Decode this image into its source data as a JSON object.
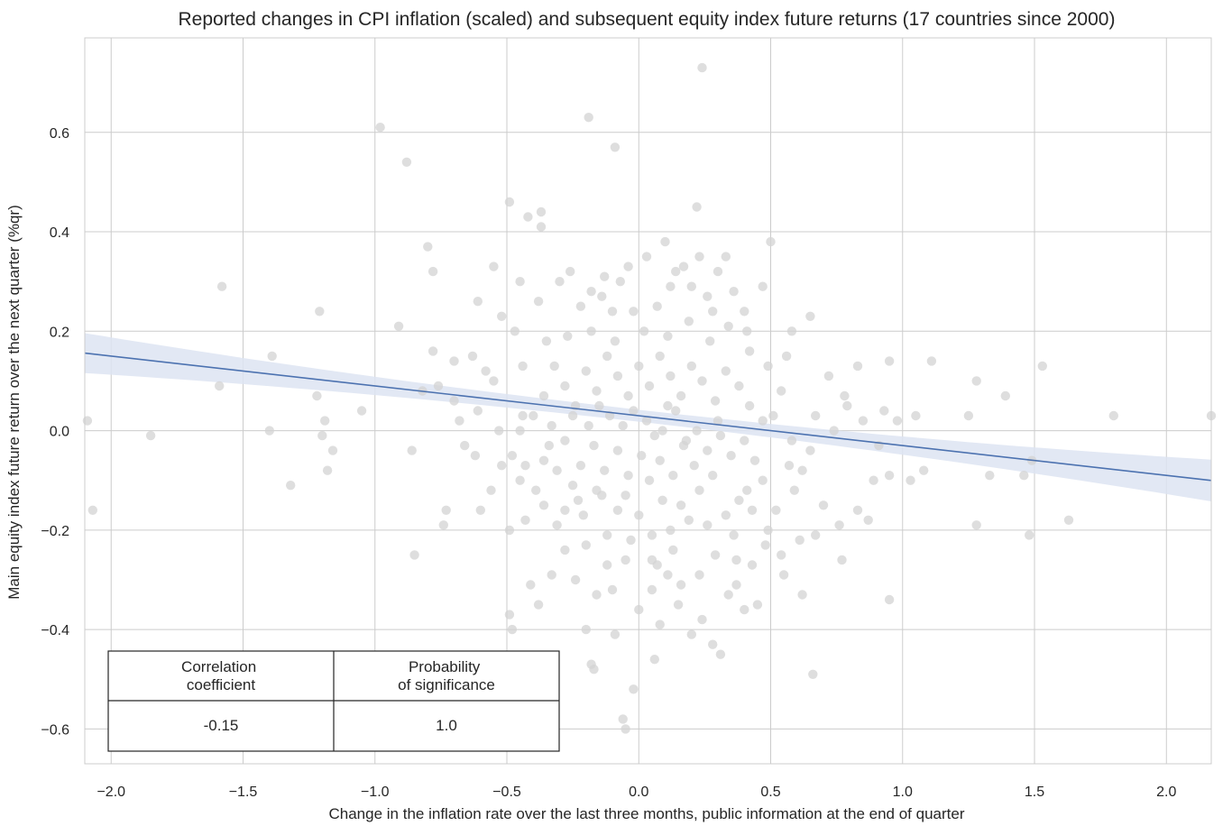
{
  "chart_data": {
    "type": "scatter",
    "title": "Reported changes in CPI inflation (scaled) and subsequent equity index future returns (17 countries since 2000)",
    "xlabel": "Change in the inflation rate over the last three months, public information at the end of quarter",
    "ylabel": "Main equity index future return over the next quarter (%qr)",
    "xlim": [
      -2.1,
      2.17
    ],
    "ylim": [
      -0.67,
      0.79
    ],
    "xticks": [
      -2.0,
      -1.5,
      -1.0,
      -0.5,
      0.0,
      0.5,
      1.0,
      1.5,
      2.0
    ],
    "xtick_labels": [
      "−2.0",
      "−1.5",
      "−1.0",
      "−0.5",
      "0.0",
      "0.5",
      "1.0",
      "1.5",
      "2.0"
    ],
    "yticks": [
      -0.6,
      -0.4,
      -0.2,
      0.0,
      0.2,
      0.4,
      0.6
    ],
    "ytick_labels": [
      "−0.6",
      "−0.4",
      "−0.2",
      "0.0",
      "0.2",
      "0.4",
      "0.6"
    ],
    "grid": true,
    "colors": {
      "points": "#d3d3d3",
      "line": "#4c72b0",
      "band": "#dde4f2",
      "grid": "#cccccc"
    },
    "regression": {
      "intercept": 0.03,
      "slope": -0.06,
      "ci_half_width_center": 0.012,
      "ci_half_width_edge": 0.042
    },
    "points": [
      [
        0.24,
        0.73
      ],
      [
        -0.98,
        0.61
      ],
      [
        -0.19,
        0.63
      ],
      [
        -0.09,
        0.57
      ],
      [
        -0.88,
        0.54
      ],
      [
        -0.49,
        0.46
      ],
      [
        -0.37,
        0.44
      ],
      [
        0.22,
        0.45
      ],
      [
        -0.42,
        0.43
      ],
      [
        -0.37,
        0.41
      ],
      [
        0.5,
        0.38
      ],
      [
        -0.8,
        0.37
      ],
      [
        -0.78,
        0.32
      ],
      [
        -1.58,
        0.29
      ],
      [
        -1.21,
        0.24
      ],
      [
        -0.91,
        0.21
      ],
      [
        -1.39,
        0.15
      ],
      [
        0.65,
        0.23
      ],
      [
        -1.59,
        0.09
      ],
      [
        -1.22,
        0.07
      ],
      [
        -0.78,
        0.16
      ],
      [
        0.95,
        0.14
      ],
      [
        1.11,
        0.14
      ],
      [
        1.53,
        0.13
      ],
      [
        1.28,
        0.1
      ],
      [
        1.39,
        0.07
      ],
      [
        -1.05,
        0.04
      ],
      [
        -1.19,
        0.02
      ],
      [
        1.25,
        0.03
      ],
      [
        1.8,
        0.03
      ],
      [
        2.17,
        0.03
      ],
      [
        -2.09,
        0.02
      ],
      [
        -1.4,
        0.0
      ],
      [
        -1.2,
        -0.01
      ],
      [
        -1.85,
        -0.01
      ],
      [
        -1.16,
        -0.04
      ],
      [
        -0.86,
        -0.04
      ],
      [
        1.49,
        -0.06
      ],
      [
        1.08,
        -0.08
      ],
      [
        1.03,
        -0.1
      ],
      [
        1.46,
        -0.09
      ],
      [
        1.33,
        -0.09
      ],
      [
        -1.18,
        -0.08
      ],
      [
        -1.32,
        -0.11
      ],
      [
        -2.07,
        -0.16
      ],
      [
        -0.73,
        -0.16
      ],
      [
        -0.74,
        -0.19
      ],
      [
        0.87,
        -0.18
      ],
      [
        1.63,
        -0.18
      ],
      [
        1.28,
        -0.19
      ],
      [
        1.48,
        -0.21
      ],
      [
        0.77,
        -0.26
      ],
      [
        -0.85,
        -0.25
      ],
      [
        0.95,
        -0.34
      ],
      [
        0.66,
        -0.49
      ],
      [
        -0.18,
        -0.47
      ],
      [
        -0.02,
        -0.52
      ],
      [
        0.06,
        -0.46
      ],
      [
        -0.06,
        -0.58
      ],
      [
        -0.05,
        -0.6
      ],
      [
        -0.48,
        -0.4
      ],
      [
        0.31,
        -0.45
      ],
      [
        0.28,
        -0.43
      ],
      [
        -0.09,
        -0.41
      ],
      [
        -0.2,
        -0.4
      ],
      [
        0.2,
        -0.41
      ],
      [
        -0.38,
        -0.35
      ],
      [
        0.37,
        -0.31
      ],
      [
        0.45,
        -0.35
      ],
      [
        -0.17,
        -0.48
      ],
      [
        -0.49,
        -0.37
      ],
      [
        0.15,
        -0.35
      ],
      [
        -0.3,
        0.3
      ],
      [
        -0.18,
        0.28
      ],
      [
        0.23,
        0.35
      ],
      [
        0.33,
        0.35
      ],
      [
        0.03,
        0.35
      ],
      [
        0.36,
        0.28
      ],
      [
        0.47,
        0.29
      ],
      [
        0.17,
        0.33
      ],
      [
        -0.1,
        0.24
      ],
      [
        0.28,
        0.24
      ],
      [
        0.41,
        0.2
      ],
      [
        0.58,
        0.2
      ],
      [
        -0.02,
        0.24
      ],
      [
        -0.61,
        0.26
      ],
      [
        -0.52,
        0.23
      ],
      [
        -0.55,
        0.33
      ],
      [
        -0.45,
        0.3
      ],
      [
        -0.63,
        0.15
      ],
      [
        -0.7,
        0.14
      ],
      [
        -0.58,
        0.12
      ],
      [
        -0.44,
        0.13
      ],
      [
        -0.7,
        0.06
      ],
      [
        -0.68,
        0.02
      ],
      [
        -0.61,
        0.04
      ],
      [
        -0.53,
        0.0
      ],
      [
        -0.44,
        0.03
      ],
      [
        -0.45,
        0.0
      ],
      [
        -0.62,
        -0.05
      ],
      [
        -0.52,
        -0.07
      ],
      [
        -0.56,
        -0.12
      ],
      [
        -0.45,
        -0.1
      ],
      [
        -0.6,
        -0.16
      ],
      [
        -0.49,
        -0.2
      ],
      [
        -0.43,
        -0.18
      ],
      [
        -0.28,
        -0.24
      ],
      [
        -0.2,
        -0.23
      ],
      [
        -0.36,
        -0.15
      ],
      [
        -0.12,
        -0.27
      ],
      [
        0.05,
        -0.26
      ],
      [
        0.13,
        -0.24
      ],
      [
        0.23,
        -0.29
      ],
      [
        0.29,
        -0.25
      ],
      [
        0.37,
        -0.26
      ],
      [
        0.43,
        -0.27
      ],
      [
        0.54,
        -0.25
      ],
      [
        0.62,
        -0.33
      ],
      [
        0.61,
        -0.22
      ],
      [
        0.67,
        -0.21
      ],
      [
        0.76,
        -0.19
      ],
      [
        0.83,
        -0.16
      ],
      [
        0.89,
        -0.1
      ],
      [
        0.95,
        -0.09
      ],
      [
        0.91,
        -0.03
      ],
      [
        0.85,
        0.02
      ],
      [
        0.78,
        0.07
      ],
      [
        0.83,
        0.13
      ],
      [
        0.72,
        0.11
      ],
      [
        0.67,
        0.03
      ],
      [
        0.65,
        -0.04
      ],
      [
        0.58,
        -0.02
      ],
      [
        0.57,
        -0.07
      ],
      [
        0.59,
        -0.12
      ],
      [
        0.52,
        -0.16
      ],
      [
        0.49,
        -0.2
      ],
      [
        0.43,
        -0.16
      ],
      [
        0.38,
        -0.14
      ],
      [
        0.33,
        -0.17
      ],
      [
        0.28,
        -0.09
      ],
      [
        0.23,
        -0.12
      ],
      [
        0.19,
        -0.18
      ],
      [
        0.12,
        -0.2
      ],
      [
        0.09,
        -0.14
      ],
      [
        0.05,
        -0.21
      ],
      [
        0.0,
        -0.17
      ],
      [
        -0.03,
        -0.22
      ],
      [
        -0.08,
        -0.16
      ],
      [
        -0.12,
        -0.21
      ],
      [
        -0.16,
        -0.12
      ],
      [
        -0.21,
        -0.17
      ],
      [
        -0.25,
        -0.11
      ],
      [
        -0.28,
        -0.16
      ],
      [
        -0.31,
        -0.08
      ],
      [
        -0.36,
        -0.06
      ],
      [
        -0.39,
        -0.12
      ],
      [
        -0.34,
        -0.03
      ],
      [
        -0.28,
        -0.02
      ],
      [
        -0.22,
        -0.07
      ],
      [
        -0.17,
        -0.03
      ],
      [
        -0.13,
        -0.08
      ],
      [
        -0.08,
        -0.04
      ],
      [
        -0.04,
        -0.09
      ],
      [
        0.01,
        -0.05
      ],
      [
        0.04,
        -0.1
      ],
      [
        0.08,
        -0.06
      ],
      [
        0.13,
        -0.09
      ],
      [
        0.17,
        -0.03
      ],
      [
        0.21,
        -0.07
      ],
      [
        0.26,
        -0.04
      ],
      [
        0.31,
        -0.01
      ],
      [
        0.35,
        -0.05
      ],
      [
        0.4,
        -0.02
      ],
      [
        0.44,
        -0.06
      ],
      [
        0.47,
        0.02
      ],
      [
        0.42,
        0.05
      ],
      [
        0.38,
        0.09
      ],
      [
        0.33,
        0.12
      ],
      [
        0.29,
        0.06
      ],
      [
        0.24,
        0.1
      ],
      [
        0.2,
        0.13
      ],
      [
        0.16,
        0.07
      ],
      [
        0.12,
        0.11
      ],
      [
        0.08,
        0.15
      ],
      [
        0.04,
        0.09
      ],
      [
        0.0,
        0.13
      ],
      [
        -0.04,
        0.07
      ],
      [
        -0.08,
        0.11
      ],
      [
        -0.12,
        0.15
      ],
      [
        -0.16,
        0.08
      ],
      [
        -0.2,
        0.12
      ],
      [
        -0.24,
        0.05
      ],
      [
        -0.28,
        0.09
      ],
      [
        -0.32,
        0.13
      ],
      [
        -0.36,
        0.07
      ],
      [
        -0.4,
        0.03
      ],
      [
        -0.35,
        0.18
      ],
      [
        -0.27,
        0.19
      ],
      [
        -0.18,
        0.2
      ],
      [
        -0.09,
        0.18
      ],
      [
        0.02,
        0.2
      ],
      [
        0.11,
        0.19
      ],
      [
        0.19,
        0.22
      ],
      [
        0.27,
        0.18
      ],
      [
        0.34,
        0.21
      ],
      [
        0.42,
        0.16
      ],
      [
        0.49,
        0.13
      ],
      [
        0.54,
        0.08
      ],
      [
        0.51,
        0.03
      ],
      [
        0.47,
        -0.1
      ],
      [
        0.41,
        -0.12
      ],
      [
        0.36,
        -0.21
      ],
      [
        0.26,
        -0.19
      ],
      [
        0.16,
        -0.15
      ],
      [
        0.07,
        -0.27
      ],
      [
        -0.05,
        -0.13
      ],
      [
        -0.14,
        -0.13
      ],
      [
        -0.23,
        -0.14
      ],
      [
        -0.31,
        -0.19
      ],
      [
        -0.43,
        -0.07
      ],
      [
        -0.48,
        -0.05
      ],
      [
        -0.06,
        0.01
      ],
      [
        0.03,
        0.02
      ],
      [
        0.09,
        0.0
      ],
      [
        -0.11,
        0.03
      ],
      [
        0.14,
        0.04
      ],
      [
        -0.19,
        0.01
      ],
      [
        0.22,
        0.0
      ],
      [
        -0.25,
        0.03
      ],
      [
        0.3,
        0.02
      ],
      [
        -0.33,
        0.01
      ],
      [
        0.11,
        0.05
      ],
      [
        -0.02,
        0.04
      ],
      [
        0.06,
        -0.01
      ],
      [
        -0.15,
        0.05
      ],
      [
        0.18,
        -0.02
      ],
      [
        -0.07,
        0.3
      ],
      [
        0.12,
        0.29
      ],
      [
        -0.14,
        0.27
      ],
      [
        0.07,
        0.25
      ],
      [
        0.3,
        0.32
      ],
      [
        -0.22,
        0.25
      ],
      [
        0.4,
        0.24
      ],
      [
        -0.47,
        0.2
      ],
      [
        0.56,
        0.15
      ],
      [
        -0.55,
        0.1
      ],
      [
        0.62,
        -0.08
      ],
      [
        0.7,
        -0.15
      ],
      [
        -0.66,
        -0.03
      ],
      [
        0.74,
        0.0
      ],
      [
        0.79,
        0.05
      ],
      [
        0.98,
        0.02
      ],
      [
        1.05,
        0.03
      ],
      [
        0.93,
        0.04
      ],
      [
        -0.76,
        0.09
      ],
      [
        -0.82,
        0.08
      ],
      [
        -0.38,
        0.26
      ],
      [
        -0.26,
        0.32
      ],
      [
        0.1,
        0.38
      ],
      [
        0.14,
        0.32
      ],
      [
        0.2,
        0.29
      ],
      [
        -0.04,
        0.33
      ],
      [
        -0.13,
        0.31
      ],
      [
        0.26,
        0.27
      ],
      [
        -0.1,
        -0.32
      ],
      [
        0.0,
        -0.36
      ],
      [
        0.08,
        -0.39
      ],
      [
        0.16,
        -0.31
      ],
      [
        -0.24,
        -0.3
      ],
      [
        0.24,
        -0.38
      ],
      [
        -0.33,
        -0.29
      ],
      [
        0.34,
        -0.33
      ],
      [
        -0.16,
        -0.33
      ],
      [
        0.11,
        -0.29
      ],
      [
        -0.05,
        -0.26
      ],
      [
        0.05,
        -0.32
      ],
      [
        0.4,
        -0.36
      ],
      [
        -0.41,
        -0.31
      ],
      [
        0.48,
        -0.23
      ],
      [
        0.55,
        -0.29
      ]
    ]
  },
  "stats_table": {
    "headers": [
      "Correlation\ncoefficient",
      "Probability\nof significance"
    ],
    "values": [
      "-0.15",
      "1.0"
    ]
  }
}
